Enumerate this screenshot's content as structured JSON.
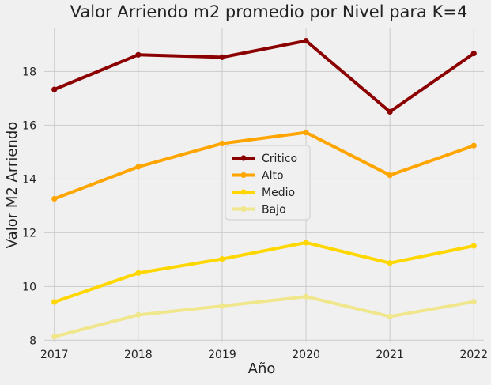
{
  "chart_data": {
    "type": "line",
    "title": "Valor Arriendo m2 promedio por Nivel para K=4",
    "xlabel": "Año",
    "ylabel": "Valor M2 Arriendo",
    "x": [
      2017,
      2018,
      2019,
      2020,
      2021,
      2022
    ],
    "x_ticks": [
      "2017",
      "2018",
      "2019",
      "2020",
      "2021",
      "2022"
    ],
    "y_ticks": [
      "8",
      "10",
      "12",
      "14",
      "16",
      "18"
    ],
    "ylim": [
      7.95,
      19.6
    ],
    "grid": true,
    "legend_position": "center",
    "series": [
      {
        "name": "Critico",
        "color": "#8b0000",
        "values": [
          17.33,
          18.62,
          18.53,
          19.14,
          16.5,
          18.67
        ]
      },
      {
        "name": "Alto",
        "color": "#ffa500",
        "values": [
          13.26,
          14.45,
          15.32,
          15.73,
          14.14,
          15.24
        ]
      },
      {
        "name": "Medio",
        "color": "#ffd700",
        "values": [
          9.42,
          10.5,
          11.02,
          11.63,
          10.87,
          11.51
        ]
      },
      {
        "name": "Bajo",
        "color": "#f0e68c",
        "values": [
          8.13,
          8.94,
          9.27,
          9.62,
          8.88,
          9.43
        ]
      }
    ]
  }
}
